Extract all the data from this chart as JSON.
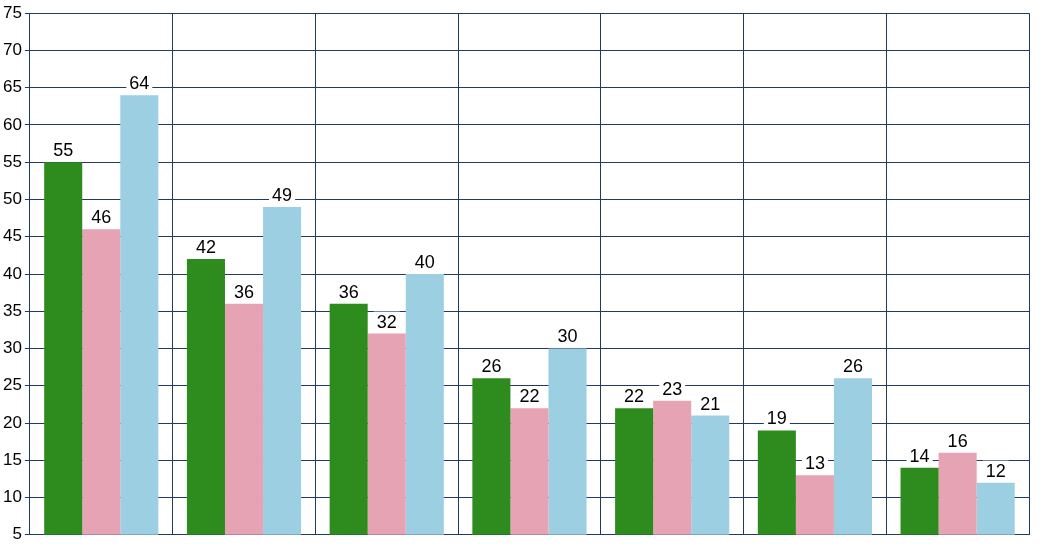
{
  "chart_data": {
    "type": "bar",
    "categories": [
      null,
      null,
      null,
      null,
      null,
      null,
      null
    ],
    "series": [
      {
        "color": "#2e8b1e",
        "values": [
          55,
          42,
          36,
          26,
          22,
          19,
          14
        ]
      },
      {
        "color": "#e6a3b3",
        "values": [
          46,
          36,
          32,
          22,
          23,
          13,
          16
        ]
      },
      {
        "color": "#9dcfe3",
        "values": [
          64,
          49,
          40,
          30,
          21,
          26,
          12
        ]
      }
    ],
    "ylim": [
      5,
      75
    ],
    "yticks": [
      5,
      10,
      15,
      20,
      25,
      30,
      35,
      40,
      45,
      50,
      55,
      60,
      65,
      70,
      75
    ],
    "grid": true,
    "legend": false,
    "data_labels": true,
    "tick_labels": "y"
  }
}
